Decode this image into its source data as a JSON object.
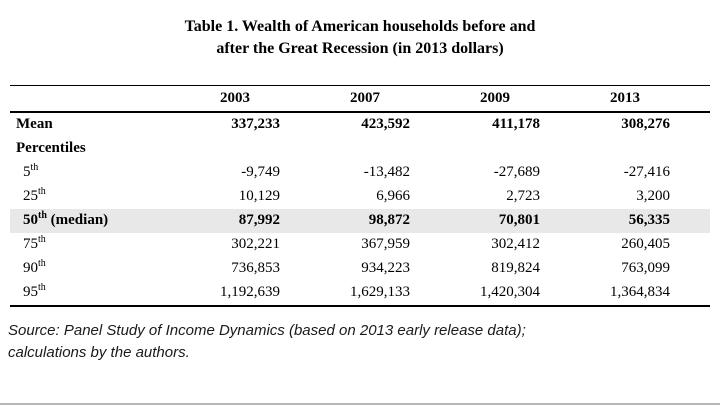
{
  "title": {
    "line1": "Table 1. Wealth of American households before and",
    "line2": "after the Great Recession (in 2013 dollars)"
  },
  "table": {
    "highlight_color": "#e8e8e8",
    "columns": [
      "2003",
      "2007",
      "2009",
      "2013"
    ],
    "rows": [
      {
        "label": "Mean",
        "sup": "",
        "suffix": "",
        "values": [
          "337,233",
          "423,592",
          "411,178",
          "308,276"
        ]
      },
      {
        "label": "Percentiles",
        "sup": "",
        "suffix": "",
        "values": [
          "",
          "",
          "",
          ""
        ]
      },
      {
        "label": "5",
        "sup": "th",
        "suffix": "",
        "values": [
          "-9,749",
          "-13,482",
          "-27,689",
          "-27,416"
        ]
      },
      {
        "label": "25",
        "sup": "th",
        "suffix": "",
        "values": [
          "10,129",
          "6,966",
          "2,723",
          "3,200"
        ]
      },
      {
        "label": "50",
        "sup": "th",
        "suffix": " (median)",
        "values": [
          "87,992",
          "98,872",
          "70,801",
          "56,335"
        ]
      },
      {
        "label": "75",
        "sup": "th",
        "suffix": "",
        "values": [
          "302,221",
          "367,959",
          "302,412",
          "260,405"
        ]
      },
      {
        "label": "90",
        "sup": "th",
        "suffix": "",
        "values": [
          "736,853",
          "934,223",
          "819,824",
          "763,099"
        ]
      },
      {
        "label": "95",
        "sup": "th",
        "suffix": "",
        "values": [
          "1,192,639",
          "1,629,133",
          "1,420,304",
          "1,364,834"
        ]
      }
    ]
  },
  "source": {
    "lines": [
      "Source: Panel Study of Income Dynamics (based on 2013 early release data);",
      "calculations by the authors."
    ]
  }
}
